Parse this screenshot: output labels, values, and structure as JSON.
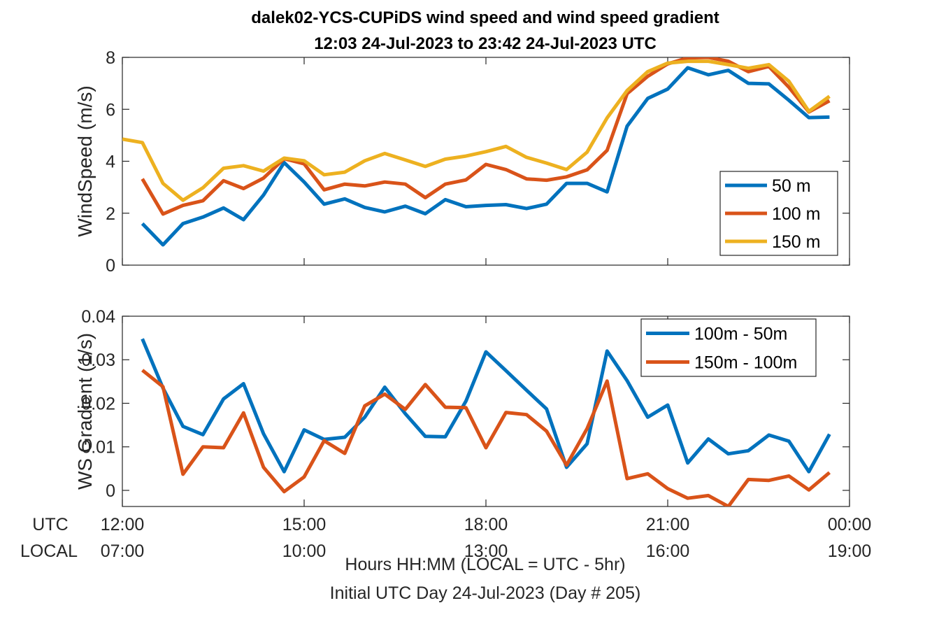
{
  "title": {
    "line1": "dalek02-YCS-CUPiDS  wind speed and wind speed gradient",
    "line2": "12:03 24-Jul-2023 to 23:42 24-Jul-2023  UTC"
  },
  "colors": {
    "blue": "#0072BD",
    "orange": "#D95319",
    "yellow": "#EDB120"
  },
  "x_axis": {
    "utc_label": "UTC",
    "local_label": "LOCAL",
    "range_hours": [
      12,
      24
    ],
    "tick_hours": [
      12,
      15,
      18,
      21,
      24
    ],
    "utc_ticks": [
      "12:00",
      "15:00",
      "18:00",
      "21:00",
      "00:00"
    ],
    "local_ticks": [
      "07:00",
      "10:00",
      "13:00",
      "16:00",
      "19:00"
    ],
    "label_line1": "Hours HH:MM  (LOCAL = UTC - 5hr)",
    "label_line2": "Initial UTC Day 24-Jul-2023 (Day # 205)"
  },
  "chart_data": [
    {
      "type": "line",
      "ylabel": "WindSpeed (m/s)",
      "ylim": [
        0,
        8
      ],
      "yticks": [
        0,
        2,
        4,
        6,
        8
      ],
      "legend_position": "right",
      "x": [
        12.0,
        12.33,
        12.67,
        13.0,
        13.33,
        13.67,
        14.0,
        14.33,
        14.67,
        15.0,
        15.33,
        15.67,
        16.0,
        16.33,
        16.67,
        17.0,
        17.33,
        17.67,
        18.0,
        18.33,
        18.67,
        19.0,
        19.33,
        19.67,
        20.0,
        20.33,
        20.67,
        21.0,
        21.33,
        21.67,
        22.0,
        22.33,
        22.67,
        23.0,
        23.33,
        23.67
      ],
      "series": [
        {
          "name": "50 m",
          "color": "blue",
          "values": [
            null,
            1.6,
            0.78,
            1.6,
            1.85,
            2.2,
            1.75,
            2.7,
            3.95,
            3.2,
            2.35,
            2.55,
            2.22,
            2.05,
            2.27,
            1.98,
            2.52,
            2.25,
            2.3,
            2.33,
            2.18,
            2.35,
            3.15,
            3.15,
            2.82,
            5.35,
            6.42,
            6.78,
            7.6,
            7.33,
            7.5,
            7.0,
            6.98,
            6.35,
            5.68,
            5.7
          ]
        },
        {
          "name": "100 m",
          "color": "orange",
          "values": [
            null,
            3.32,
            1.97,
            2.3,
            2.48,
            3.25,
            2.95,
            3.35,
            4.1,
            3.9,
            2.9,
            3.12,
            3.05,
            3.2,
            3.12,
            2.6,
            3.12,
            3.28,
            3.88,
            3.68,
            3.32,
            3.27,
            3.4,
            3.67,
            4.42,
            6.6,
            7.27,
            7.75,
            7.98,
            8.0,
            7.85,
            7.45,
            7.65,
            6.85,
            5.9,
            6.33
          ]
        },
        {
          "name": "150 m",
          "color": "yellow",
          "values": [
            4.85,
            4.72,
            3.15,
            2.5,
            2.98,
            3.73,
            3.83,
            3.62,
            4.12,
            4.02,
            3.48,
            3.58,
            4.02,
            4.3,
            4.05,
            3.8,
            4.08,
            4.2,
            4.37,
            4.57,
            4.15,
            3.93,
            3.68,
            4.35,
            5.67,
            6.72,
            7.45,
            7.78,
            7.85,
            7.85,
            7.72,
            7.58,
            7.72,
            7.08,
            5.92,
            6.5
          ]
        }
      ]
    },
    {
      "type": "line",
      "ylabel": "WS Gradient (1/s)",
      "ylim": [
        -0.0037,
        0.04
      ],
      "yticks": [
        0,
        0.01,
        0.02,
        0.03,
        0.04
      ],
      "ytick_labels": [
        "0",
        "0.01",
        "0.02",
        "0.03",
        "0.04"
      ],
      "legend_position": "top-right",
      "x": [
        12.33,
        12.67,
        13.0,
        13.33,
        13.67,
        14.0,
        14.33,
        14.67,
        15.0,
        15.33,
        15.67,
        16.0,
        16.33,
        16.67,
        17.0,
        17.33,
        17.67,
        18.0,
        18.33,
        18.67,
        19.0,
        19.33,
        19.67,
        20.0,
        20.33,
        20.67,
        21.0,
        21.33,
        21.67,
        22.0,
        22.33,
        22.67,
        23.0,
        23.33,
        23.67
      ],
      "series": [
        {
          "name": "100m - 50m",
          "color": "blue",
          "values": [
            0.0348,
            0.0235,
            0.0147,
            0.0128,
            0.021,
            0.0245,
            0.013,
            0.0043,
            0.0139,
            0.0117,
            0.0122,
            0.0168,
            0.0237,
            0.0176,
            0.0124,
            0.0123,
            0.0205,
            0.0318,
            0.0275,
            0.023,
            0.0187,
            0.0053,
            0.0107,
            0.032,
            0.0252,
            0.0168,
            0.0196,
            0.0063,
            0.0118,
            0.0084,
            0.0091,
            0.0127,
            0.0113,
            0.0043,
            0.0129
          ]
        },
        {
          "name": "150m - 100m",
          "color": "orange",
          "values": [
            0.0276,
            0.0238,
            0.0037,
            0.01,
            0.0098,
            0.0178,
            0.0053,
            -0.0003,
            0.0031,
            0.0114,
            0.0085,
            0.0194,
            0.0221,
            0.0186,
            0.0243,
            0.0191,
            0.019,
            0.0098,
            0.0179,
            0.0174,
            0.0136,
            0.0058,
            0.0142,
            0.0251,
            0.0027,
            0.0038,
            0.0004,
            -0.0018,
            -0.0012,
            -0.0037,
            0.0025,
            0.0023,
            0.0033,
            0.0001,
            0.0041
          ]
        }
      ]
    }
  ]
}
